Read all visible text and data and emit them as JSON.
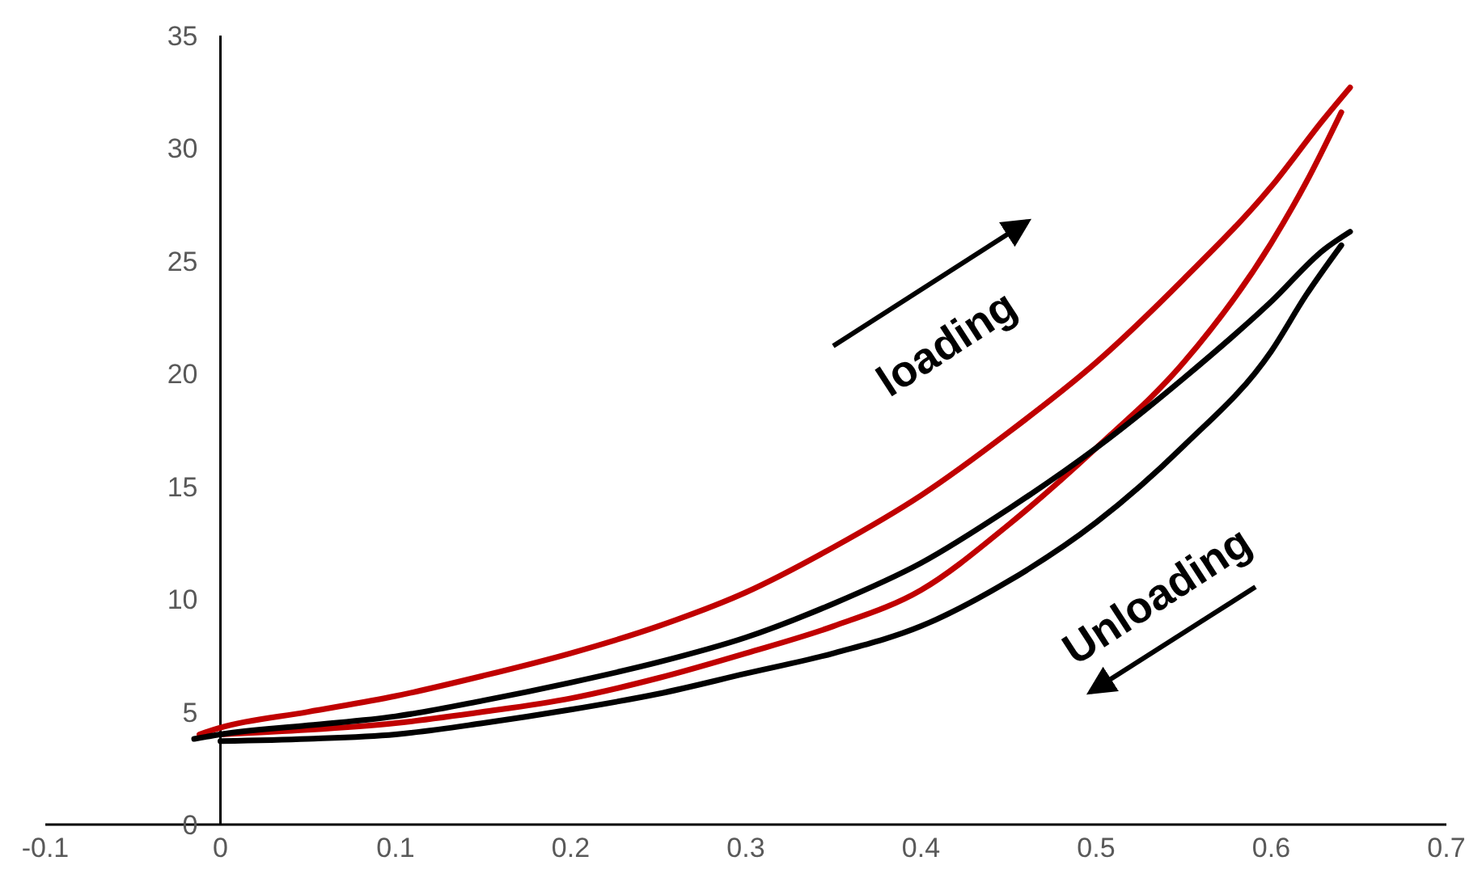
{
  "chart_data": {
    "type": "line",
    "xlim": [
      -0.1,
      0.7
    ],
    "xticks": [
      -0.1,
      0,
      0.1,
      0.2,
      0.3,
      0.4,
      0.5,
      0.6,
      0.7
    ],
    "ylim": [
      0,
      35
    ],
    "yticks": [
      0,
      5,
      10,
      15,
      20,
      25,
      30,
      35
    ],
    "grid": false,
    "marker": "none",
    "line_style": "solid",
    "annotations": [
      "loading",
      "Unloading"
    ],
    "series": [
      {
        "color": "#c00000",
        "x": [
          -0.012,
          0,
          0.05,
          0.1,
          0.15,
          0.2,
          0.25,
          0.3,
          0.35,
          0.4,
          0.45,
          0.5,
          0.55,
          0.6,
          0.63,
          0.645
        ],
        "values": [
          4.0,
          4.3,
          5.0,
          5.7,
          6.6,
          7.6,
          8.8,
          10.3,
          12.3,
          14.6,
          17.4,
          20.5,
          24.2,
          28.3,
          31.3,
          32.7
        ]
      },
      {
        "color": "#c00000",
        "x": [
          0,
          0.05,
          0.1,
          0.15,
          0.2,
          0.25,
          0.3,
          0.35,
          0.4,
          0.45,
          0.5,
          0.55,
          0.6,
          0.62,
          0.64
        ],
        "values": [
          4.0,
          4.2,
          4.5,
          5.0,
          5.6,
          6.5,
          7.6,
          8.8,
          10.4,
          13.3,
          16.7,
          20.5,
          25.8,
          28.5,
          31.6
        ]
      },
      {
        "color": "#000000",
        "x": [
          -0.015,
          0,
          0.05,
          0.1,
          0.15,
          0.2,
          0.25,
          0.3,
          0.35,
          0.4,
          0.45,
          0.5,
          0.55,
          0.6,
          0.63,
          0.645
        ],
        "values": [
          3.8,
          4.0,
          4.4,
          4.8,
          5.5,
          6.3,
          7.2,
          8.3,
          9.8,
          11.6,
          14.0,
          16.7,
          19.8,
          23.2,
          25.5,
          26.3
        ]
      },
      {
        "color": "#000000",
        "x": [
          0,
          0.05,
          0.1,
          0.15,
          0.2,
          0.25,
          0.3,
          0.35,
          0.4,
          0.45,
          0.5,
          0.55,
          0.6,
          0.62,
          0.64
        ],
        "values": [
          3.7,
          3.8,
          4.0,
          4.5,
          5.1,
          5.8,
          6.7,
          7.6,
          8.8,
          10.8,
          13.4,
          16.8,
          21.0,
          23.5,
          25.7
        ]
      }
    ]
  }
}
